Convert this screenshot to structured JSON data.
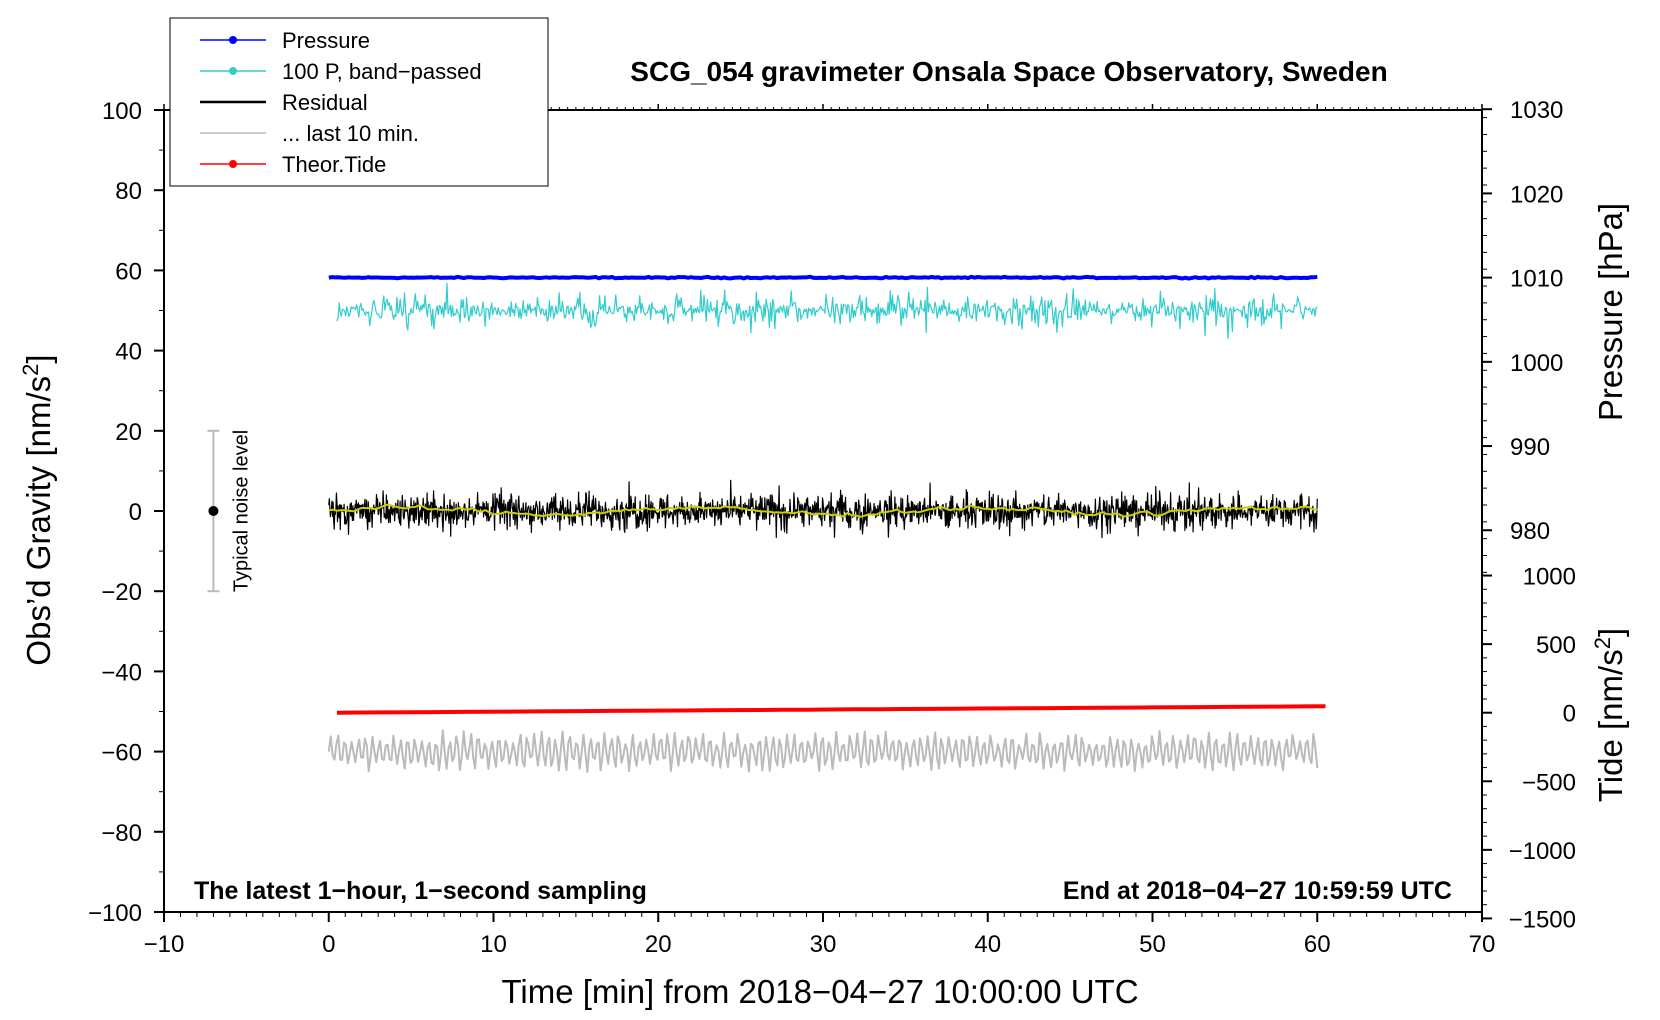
{
  "chart_data": {
    "type": "line",
    "title": "SCG_054 gravimeter Onsala Space Observatory, Sweden",
    "xlabel": "Time [min] from 2018−04−27 10:00:00 UTC",
    "ylabel_left": "Obs’d Gravity [nm/s",
    "ylabel_left_sup": "2",
    "ylabel_left_close": "]",
    "ylabel_right_pressure": "Pressure [hPa]",
    "ylabel_right_tide": "Tide [nm/s",
    "ylabel_right_tide_sup": "2",
    "ylabel_right_tide_close": "]",
    "xlim": [
      -10,
      70
    ],
    "ylim": [
      -100,
      100
    ],
    "x_ticks": [
      "−10",
      "0",
      "10",
      "20",
      "30",
      "40",
      "50",
      "60",
      "70"
    ],
    "y_ticks": [
      "−100",
      "−80",
      "−60",
      "−40",
      "−20",
      "0",
      "20",
      "40",
      "60",
      "80",
      "100"
    ],
    "pressure_ticks": [
      "980",
      "990",
      "1000",
      "1010",
      "1020",
      "1030"
    ],
    "tide_ticks": [
      "−1500",
      "−1000",
      "−500",
      "0",
      "500",
      "1000"
    ],
    "annotation_left": "The latest 1−hour, 1−second sampling",
    "annotation_right": "End at 2018−04−27 10:59:59 UTC",
    "noise_label": "Typical noise level",
    "noise_range": [
      -20,
      20
    ],
    "noise_x": -7,
    "legend": [
      {
        "label": "Pressure",
        "color": "#0000ff",
        "marker": true
      },
      {
        "label": "100 P, band−passed",
        "color": "#33cccc",
        "marker": true
      },
      {
        "label": "Residual",
        "color": "#000000",
        "marker": false
      },
      {
        "label": "... last 10 min.",
        "color": "#bbbbbb",
        "marker": false
      },
      {
        "label": "Theor.Tide",
        "color": "#ff0000",
        "marker": true
      }
    ],
    "series": [
      {
        "name": "Pressure",
        "color": "#0000ff",
        "level": 58.2,
        "amplitude": 0.6,
        "x_start": 0,
        "x_end": 60
      },
      {
        "name": "100 P, band−passed",
        "color": "#33cccc",
        "level": 50,
        "amplitude": 12,
        "x_start": 0.5,
        "x_end": 60
      },
      {
        "name": "Residual",
        "color": "#000000",
        "level": 0,
        "amplitude": 9,
        "x_start": 0,
        "x_end": 60
      },
      {
        "name": "Residual (smoothed)",
        "color": "#cccc00",
        "level": 0,
        "amplitude": 1.5,
        "x_start": 0,
        "x_end": 60
      },
      {
        "name": "... last 10 min.",
        "color": "#bbbbbb",
        "level": -60,
        "amplitude": 6,
        "x_start": 0,
        "x_end": 60
      },
      {
        "name": "Theor.Tide",
        "color": "#ff0000",
        "start_value": -50.3,
        "end_value": -48.7,
        "x_start": 0.5,
        "x_end": 60.5
      }
    ]
  }
}
